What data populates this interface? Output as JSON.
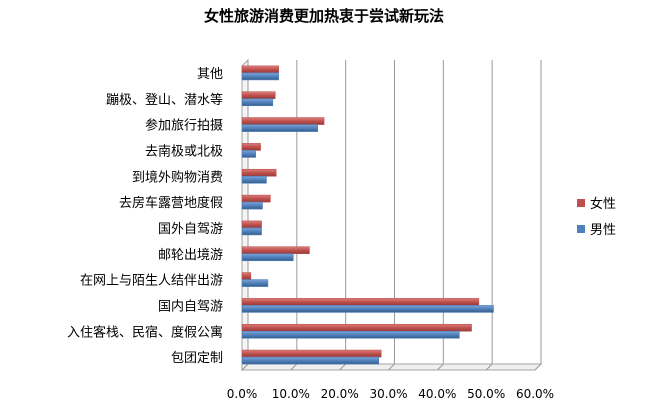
{
  "chart_data": {
    "type": "bar",
    "orientation": "horizontal",
    "title": "女性旅游消费更加热衷于尝试新玩法",
    "categories": [
      "其他",
      "蹦极、登山、潜水等",
      "参加旅行拍摄",
      "去南极或北极",
      "到境外购物消费",
      "去房车露营地度假",
      "国外自驾游",
      "邮轮出境游",
      "在网上与陌生人结伴出游",
      "国内自驾游",
      "入住客栈、民宿、度假公寓",
      "包团定制"
    ],
    "series": [
      {
        "name": "女性",
        "color": "#c0504d",
        "values": [
          7.5,
          6.8,
          16.8,
          3.8,
          7.0,
          5.8,
          4.0,
          13.8,
          1.8,
          48.5,
          47.0,
          28.5
        ]
      },
      {
        "name": "男性",
        "color": "#4f81bd",
        "values": [
          7.5,
          6.3,
          15.5,
          2.8,
          5.0,
          4.2,
          4.0,
          10.5,
          5.3,
          51.5,
          44.5,
          28.0
        ]
      }
    ],
    "xlim": [
      0,
      60
    ],
    "xticks": [
      "0.0%",
      "10.0%",
      "20.0%",
      "30.0%",
      "40.0%",
      "50.0%",
      "60.0%"
    ],
    "grid": true,
    "legend_position": "right"
  }
}
